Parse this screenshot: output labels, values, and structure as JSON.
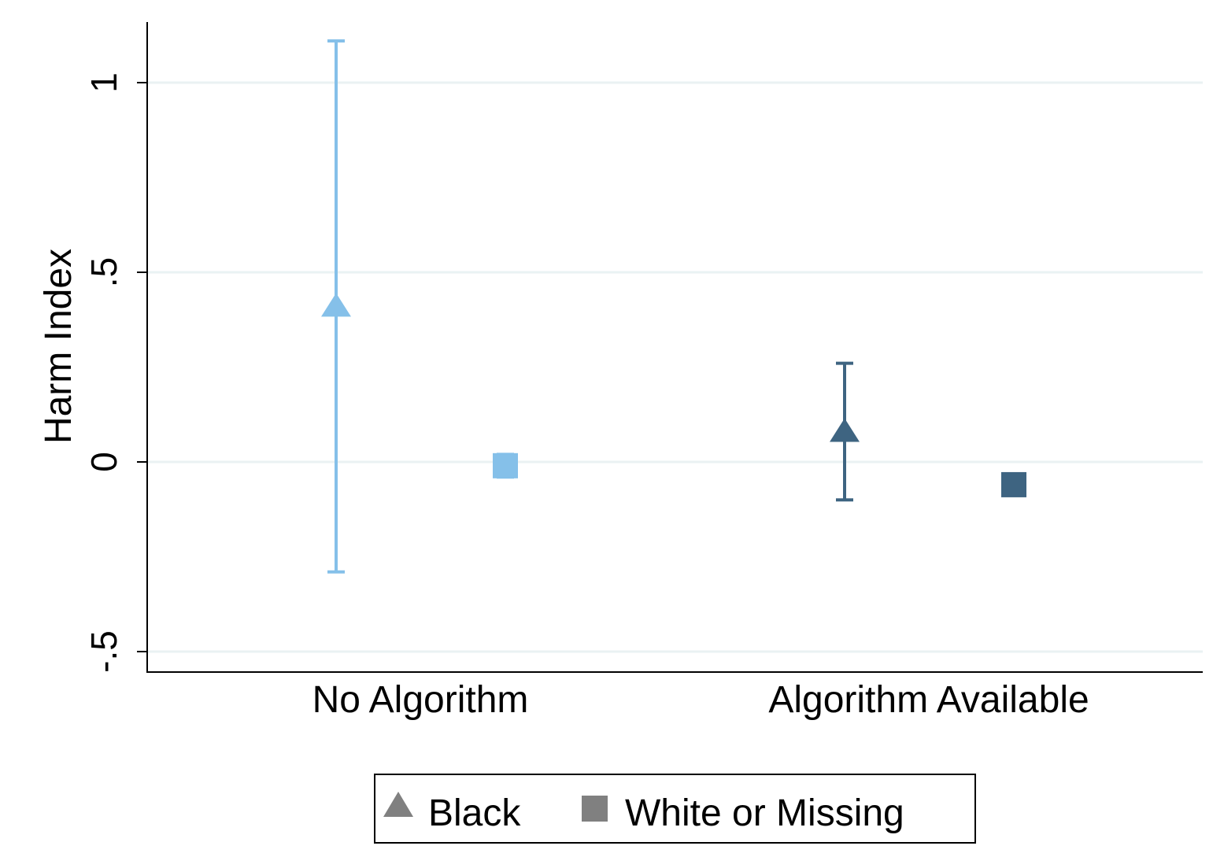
{
  "chart_data": {
    "type": "scatter",
    "title": "",
    "xlabel": "",
    "ylabel": "Harm Index",
    "ylim": [
      -0.55,
      1.15
    ],
    "yticks": [
      {
        "value": -0.5,
        "label": "-.5"
      },
      {
        "value": 0,
        "label": "0"
      },
      {
        "value": 0.5,
        "label": ".5"
      },
      {
        "value": 1,
        "label": "1"
      }
    ],
    "categories": [
      "No Algorithm",
      "Algorithm Available"
    ],
    "grid": true,
    "legend_position": "bottom",
    "series": [
      {
        "name": "Black",
        "marker": "triangle",
        "points": [
          {
            "category": "No Algorithm",
            "y": 0.41,
            "ci_low": -0.29,
            "ci_high": 1.11,
            "color": "#85C0E9"
          },
          {
            "category": "Algorithm Available",
            "y": 0.08,
            "ci_low": -0.1,
            "ci_high": 0.26,
            "color": "#3E6481"
          }
        ]
      },
      {
        "name": "White or Missing",
        "marker": "square",
        "points": [
          {
            "category": "No Algorithm",
            "y": -0.01,
            "ci_low": -0.04,
            "ci_high": 0.02,
            "color": "#85C0E9"
          },
          {
            "category": "Algorithm Available",
            "y": -0.06,
            "ci_low": -0.075,
            "ci_high": -0.045,
            "color": "#3E6481"
          }
        ]
      }
    ],
    "legend_marker_color": "#808080"
  }
}
